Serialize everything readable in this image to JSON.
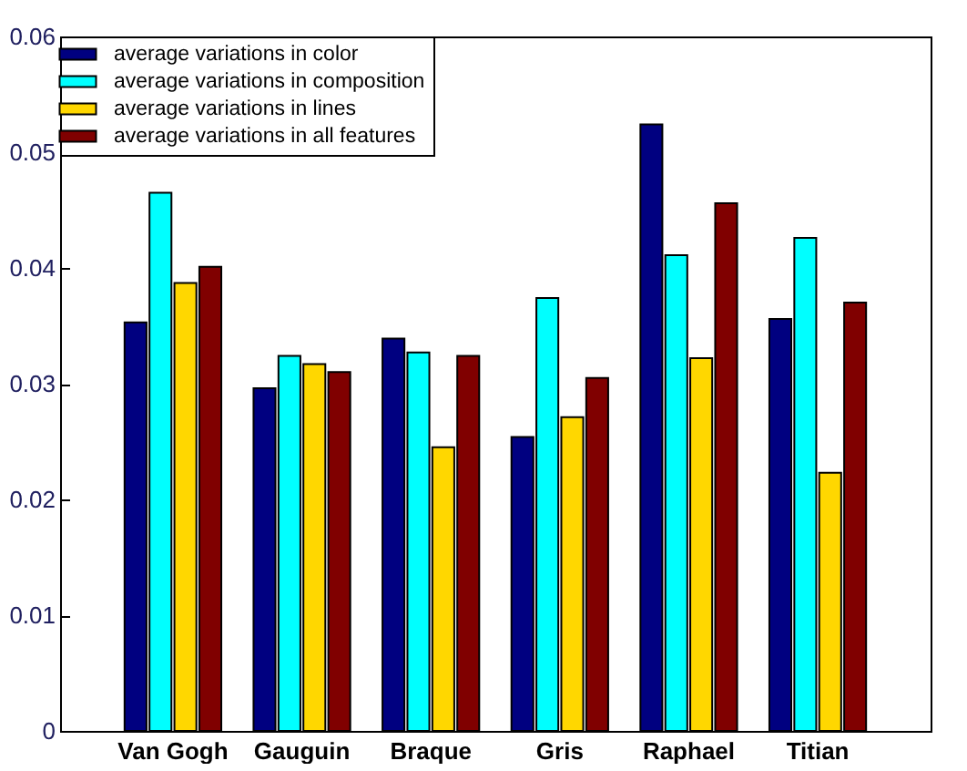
{
  "chart_data": {
    "type": "bar",
    "categories": [
      "Van Gogh",
      "Gauguin",
      "Braque",
      "Gris",
      "Raphael",
      "Titian"
    ],
    "series": [
      {
        "name": "average variations in color",
        "color": "#000080",
        "values": [
          0.0353,
          0.0296,
          0.0339,
          0.0254,
          0.0524,
          0.0356
        ]
      },
      {
        "name": "average variations in composition",
        "color": "#00ffff",
        "values": [
          0.0465,
          0.0324,
          0.0327,
          0.0374,
          0.0411,
          0.0426
        ]
      },
      {
        "name": "average variations in lines",
        "color": "#ffd700",
        "values": [
          0.0387,
          0.0317,
          0.0245,
          0.0271,
          0.0322,
          0.0223
        ]
      },
      {
        "name": "average variations in all features",
        "color": "#800000",
        "values": [
          0.0401,
          0.031,
          0.0324,
          0.0305,
          0.0456,
          0.037
        ]
      }
    ],
    "ylim": [
      0,
      0.06
    ],
    "yticks": [
      0,
      0.01,
      0.02,
      0.03,
      0.04,
      0.05,
      0.06
    ],
    "grid": false,
    "legend": "top left"
  }
}
